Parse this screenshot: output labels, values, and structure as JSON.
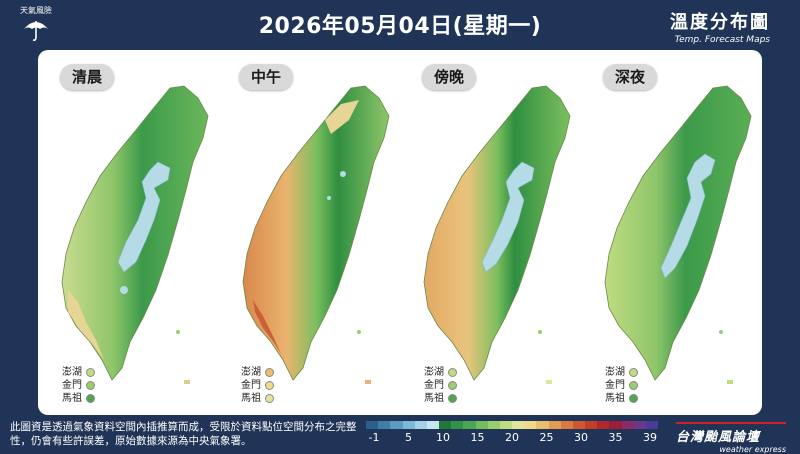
{
  "header": {
    "logo_text": "天氣風險",
    "title": "2026年05月04日(星期一)",
    "map_title": "溫度分布圖",
    "map_title_en": "Temp. Forecast Maps"
  },
  "maps": [
    {
      "label": "清晨",
      "level": 0.45
    },
    {
      "label": "中午",
      "level": 0.85
    },
    {
      "label": "傍晚",
      "level": 0.62
    },
    {
      "label": "深夜",
      "level": 0.42
    }
  ],
  "islands": {
    "names": [
      "澎湖",
      "金門",
      "馬祖"
    ]
  },
  "footer": {
    "disclaimer": "此圖資是透過氣象資料空間內插推算而成，受限於資料點位空間分布之完整性，仍會有些許誤差，原始數據來源為中央氣象署。",
    "brand": "台灣颱風論壇",
    "brand_en": "weather express"
  },
  "colorbar": {
    "labels": [
      "-1",
      "5",
      "10",
      "15",
      "20",
      "25",
      "30",
      "35",
      "39"
    ],
    "colors": [
      "#2c5f8a",
      "#3f7ea6",
      "#5a9cc0",
      "#7cb8d6",
      "#a3d2e6",
      "#c6e7ef",
      "#1f7a3a",
      "#2f9446",
      "#4aa852",
      "#72bd5d",
      "#9acd6b",
      "#c0dc80",
      "#e3e69a",
      "#f0d98a",
      "#ebbe6e",
      "#e39c55",
      "#d97a40",
      "#cf5830",
      "#c23e26",
      "#b0282a",
      "#9c1d3a",
      "#8a2a6a",
      "#6a3a8a",
      "#4a3a9a"
    ]
  }
}
